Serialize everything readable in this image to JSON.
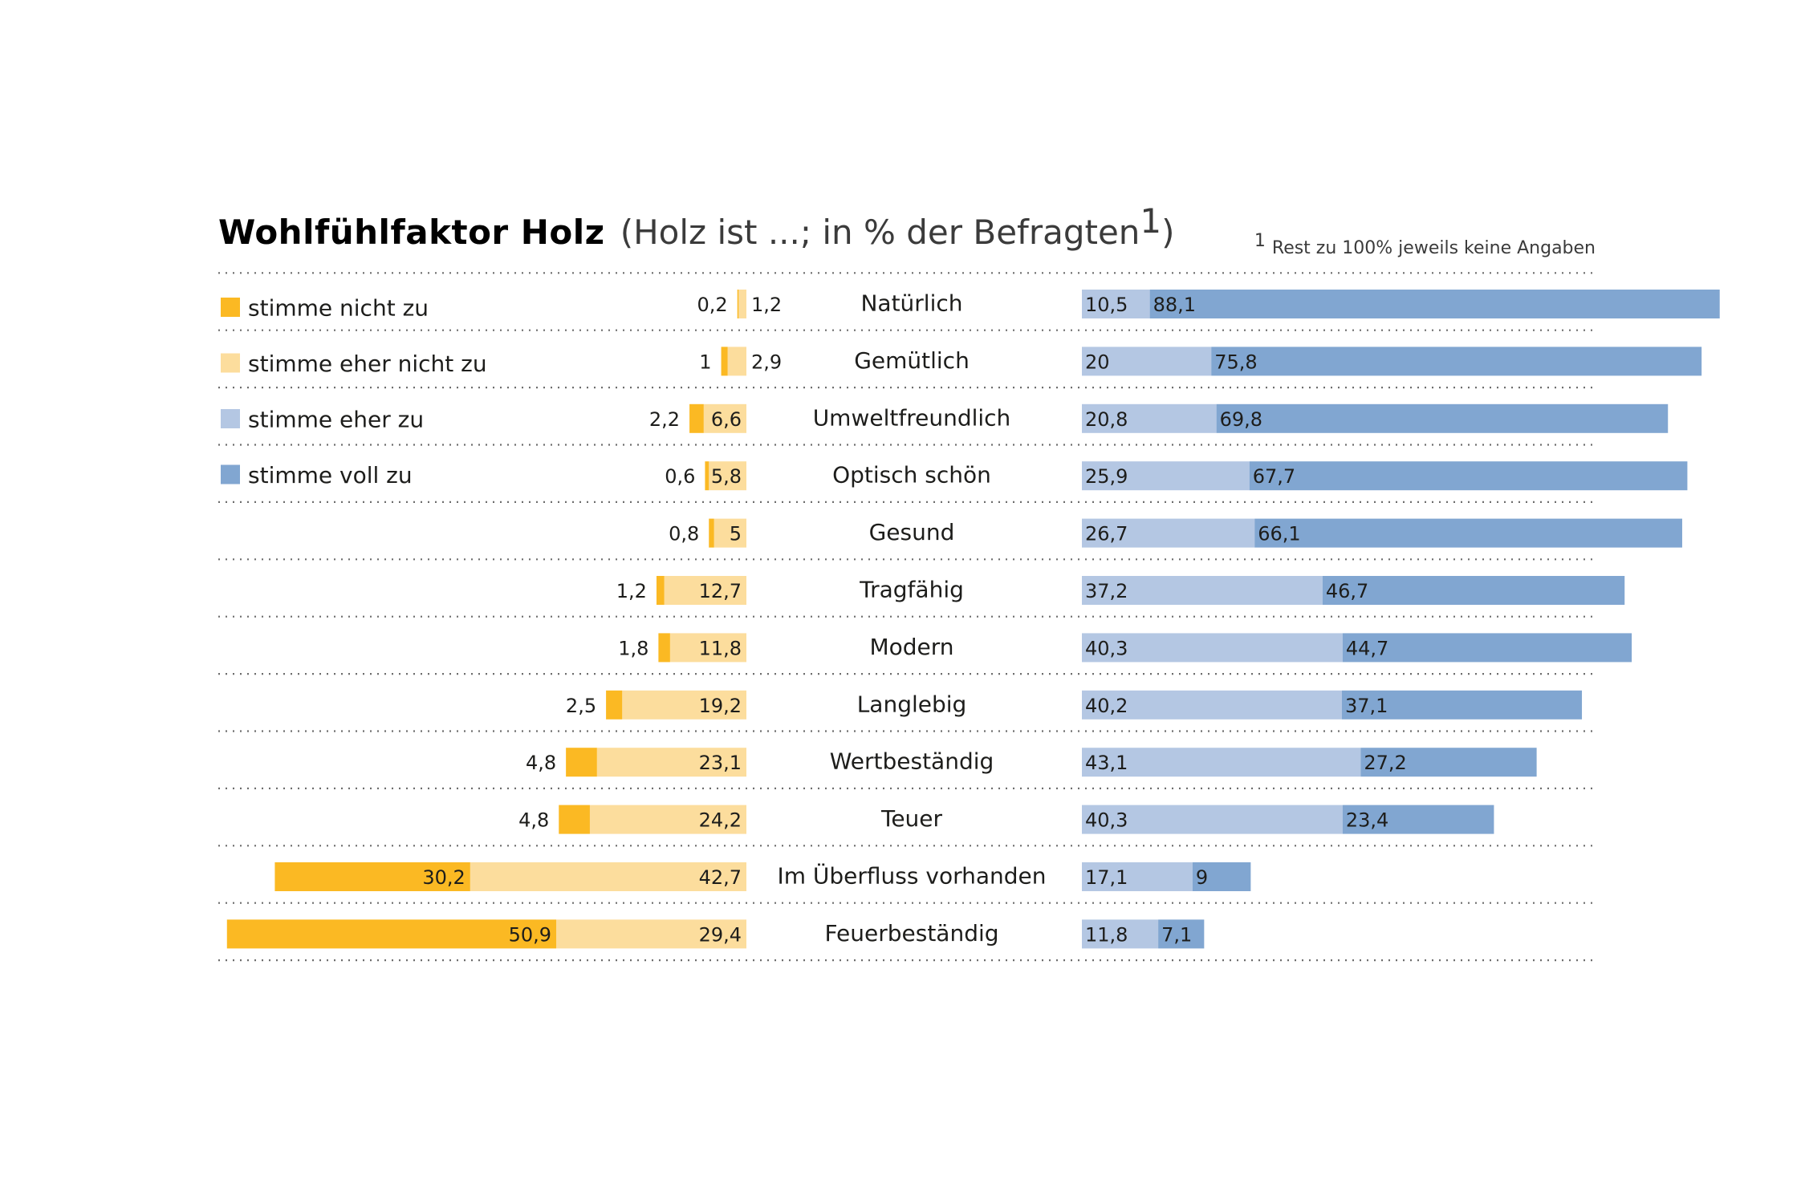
{
  "chart_data": {
    "type": "bar",
    "title": "Wohlfühlfaktor Holz",
    "subtitle": "(Holz ist ...; in % der Befragten",
    "subtitle_sup": "1",
    "subtitle_close": ")",
    "footnote_mark": "1",
    "footnote_text": "Rest zu 100% jeweils keine Angaben",
    "categories": [
      "Natürlich",
      "Gemütlich",
      "Umweltfreundlich",
      "Optisch schön",
      "Gesund",
      "Tragfähig",
      "Modern",
      "Langlebig",
      "Wertbeständig",
      "Teuer",
      "Im Überfluss vorhanden",
      "Feuerbeständig"
    ],
    "series": [
      {
        "name": "stimme nicht zu",
        "color": "#fbb923",
        "side": "left",
        "values": [
          0.2,
          1,
          2.2,
          0.6,
          0.8,
          1.2,
          1.8,
          2.5,
          4.8,
          4.8,
          30.2,
          50.9
        ],
        "labels": [
          "0,2",
          "1",
          "2,2",
          "0,6",
          "0,8",
          "1,2",
          "1,8",
          "2,5",
          "4,8",
          "4,8",
          "30,2",
          "50,9"
        ]
      },
      {
        "name": "stimme eher nicht zu",
        "color": "#fcdd9d",
        "side": "left",
        "values": [
          1.2,
          2.9,
          6.6,
          5.8,
          5,
          12.7,
          11.8,
          19.2,
          23.1,
          24.2,
          42.7,
          29.4
        ],
        "labels": [
          "1,2",
          "2,9",
          "6,6",
          "5,8",
          "5",
          "12,7",
          "11,8",
          "19,2",
          "23,1",
          "24,2",
          "42,7",
          "29,4"
        ]
      },
      {
        "name": "stimme eher zu",
        "color": "#b4c7e3",
        "side": "right",
        "values": [
          10.5,
          20,
          20.8,
          25.9,
          26.7,
          37.2,
          40.3,
          40.2,
          43.1,
          40.3,
          17.1,
          11.8
        ],
        "labels": [
          "10,5",
          "20",
          "20,8",
          "25,9",
          "26,7",
          "37,2",
          "40,3",
          "40,2",
          "43,1",
          "40,3",
          "17,1",
          "11,8"
        ]
      },
      {
        "name": "stimme voll zu",
        "color": "#81a6d1",
        "side": "right",
        "values": [
          88.1,
          75.8,
          69.8,
          67.7,
          66.1,
          46.7,
          44.7,
          37.1,
          27.2,
          23.4,
          9,
          7.1
        ],
        "labels": [
          "88,1",
          "75,8",
          "69,8",
          "67,7",
          "66,1",
          "46,7",
          "44,7",
          "37,1",
          "27,2",
          "23,4",
          "9",
          "7,1"
        ]
      }
    ],
    "xlim": [
      0,
      100
    ],
    "grid": false,
    "legend_position": "left"
  }
}
